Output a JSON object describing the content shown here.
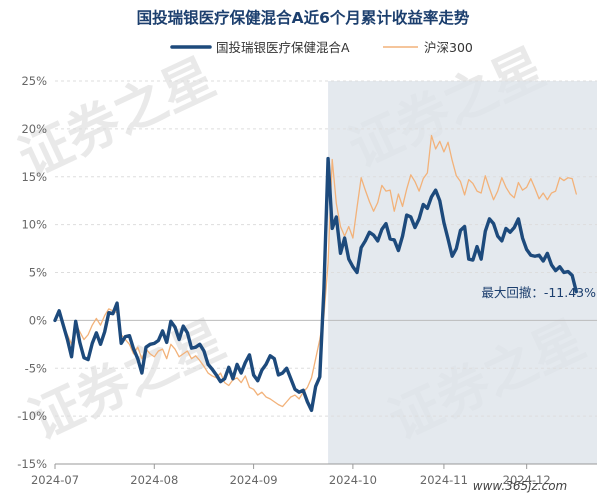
{
  "chart_data": {
    "type": "line",
    "title": "国投瑞银医疗保健混合A近6个月累计收益率走势",
    "yunit": "%",
    "ylim": [
      -15,
      25
    ],
    "yticks": [
      -15,
      -10,
      -5,
      0,
      5,
      10,
      15,
      20,
      25
    ],
    "xticks": [
      {
        "label": "2024-07",
        "x": 0
      },
      {
        "label": "2024-08",
        "x": 24
      },
      {
        "label": "2024-09",
        "x": 48
      },
      {
        "label": "2024-10",
        "x": 72
      },
      {
        "label": "2024-11",
        "x": 94
      },
      {
        "label": "2024-12",
        "x": 114
      }
    ],
    "xmax": 131,
    "shade_start_x": 66,
    "grid": true,
    "legend_position": "top-center",
    "annotation": "最大回撤：-11.43%",
    "series": [
      {
        "name": "国投瑞银医疗保健混合A",
        "color": "#1d4a7c",
        "values": [
          0.0,
          1.0,
          -0.5,
          -2.0,
          -3.8,
          -0.1,
          -2.3,
          -3.9,
          -4.1,
          -2.4,
          -1.3,
          -2.5,
          -1.2,
          0.8,
          0.7,
          1.8,
          -2.4,
          -1.7,
          -1.6,
          -3.0,
          -4.0,
          -5.5,
          -2.8,
          -2.5,
          -2.4,
          -2.1,
          -1.1,
          -2.3,
          -0.1,
          -0.7,
          -2.0,
          -0.6,
          -1.3,
          -2.9,
          -2.8,
          -2.5,
          -3.2,
          -4.6,
          -5.1,
          -5.7,
          -6.4,
          -6.1,
          -4.9,
          -6.1,
          -4.6,
          -5.5,
          -4.4,
          -3.6,
          -5.7,
          -6.3,
          -5.2,
          -4.6,
          -3.7,
          -4.0,
          -5.7,
          -5.5,
          -5.0,
          -6.1,
          -7.2,
          -7.5,
          -7.3,
          -8.5,
          -9.4,
          -6.9,
          -5.9,
          3.3,
          16.9,
          9.6,
          10.8,
          7.0,
          8.6,
          6.4,
          5.6,
          5.0,
          7.6,
          8.3,
          9.2,
          8.9,
          8.3,
          9.5,
          10.1,
          8.5,
          8.4,
          7.3,
          8.8,
          11.0,
          10.8,
          9.7,
          10.6,
          12.1,
          11.7,
          12.9,
          13.6,
          12.5,
          10.2,
          8.5,
          6.7,
          7.5,
          9.4,
          9.8,
          6.4,
          6.3,
          7.7,
          6.4,
          9.3,
          10.6,
          10.1,
          8.8,
          8.3,
          9.6,
          9.2,
          9.7,
          10.6,
          8.6,
          7.4,
          6.8,
          6.7,
          6.8,
          6.2,
          7.0,
          5.8,
          5.2,
          5.6,
          5.0,
          5.1,
          4.7,
          3.0
        ],
        "legend_label": "国投瑞银医疗保健混合A"
      },
      {
        "name": "沪深300",
        "color": "#f2b27a",
        "values": [
          0.0,
          0.8,
          -0.5,
          -1.5,
          -2.5,
          -0.3,
          -1.2,
          -2.0,
          -1.5,
          -0.5,
          0.2,
          -0.5,
          0.5,
          1.2,
          1.0,
          0.8,
          -1.5,
          -2.0,
          -2.5,
          -3.5,
          -2.8,
          -4.0,
          -3.0,
          -3.5,
          -3.8,
          -3.2,
          -3.0,
          -4.0,
          -2.5,
          -3.0,
          -3.8,
          -3.5,
          -3.2,
          -4.0,
          -3.7,
          -4.2,
          -4.8,
          -5.5,
          -5.8,
          -6.0,
          -5.5,
          -6.5,
          -6.8,
          -6.2,
          -6.0,
          -6.5,
          -5.8,
          -7.0,
          -7.2,
          -7.8,
          -7.5,
          -8.0,
          -8.2,
          -8.5,
          -8.8,
          -9.0,
          -8.5,
          -8.0,
          -7.8,
          -8.2,
          -7.5,
          -7.0,
          -6.0,
          -4.0,
          -2.0,
          0.5,
          6.0,
          16.8,
          12.2,
          9.8,
          8.8,
          9.8,
          8.6,
          11.8,
          14.9,
          13.6,
          12.4,
          11.4,
          12.3,
          14.1,
          13.5,
          13.6,
          11.4,
          13.2,
          11.9,
          13.7,
          15.2,
          14.5,
          13.5,
          14.8,
          15.4,
          19.3,
          17.9,
          18.7,
          17.6,
          18.6,
          16.7,
          15.1,
          14.5,
          13.1,
          14.7,
          14.3,
          13.5,
          13.3,
          15.1,
          13.8,
          12.6,
          13.5,
          14.9,
          13.9,
          13.2,
          12.8,
          14.4,
          13.6,
          13.9,
          14.8,
          13.8,
          12.7,
          13.3,
          12.6,
          13.3,
          13.5,
          14.9,
          14.6,
          14.9,
          14.8,
          13.2
        ]
      }
    ]
  },
  "watermark": {
    "text1": "证券之星",
    "url": "www.365jz.com"
  }
}
